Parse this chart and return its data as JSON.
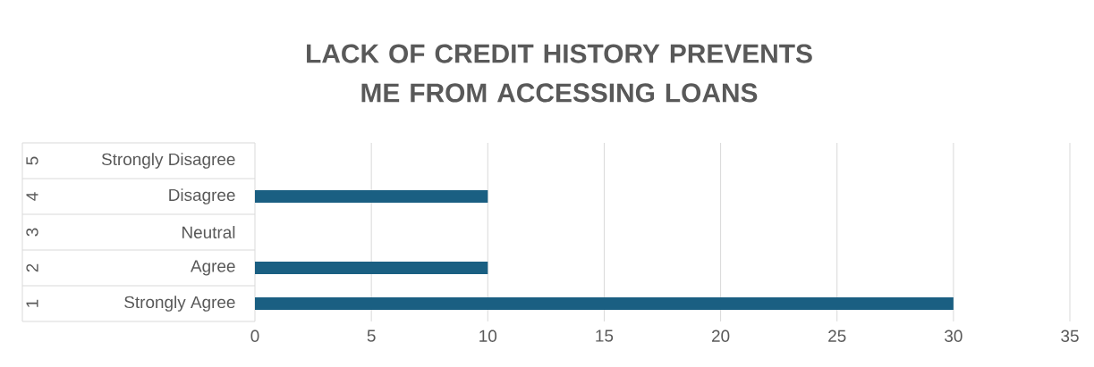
{
  "chart_data": {
    "type": "bar",
    "orientation": "horizontal",
    "title": "LACK OF CREDIT HISTORY PREVENTS ME FROM ACCESSING LOANS",
    "categories": [
      "Strongly Disagree",
      "Disagree",
      "Neutral",
      "Agree",
      "Strongly Agree"
    ],
    "values": [
      0,
      10,
      0,
      10,
      30
    ],
    "color": "#1a5f82",
    "annotations": [
      "5",
      "4",
      "3",
      "2",
      "1"
    ],
    "xlim": [
      0,
      35
    ],
    "xticks": [
      0,
      5,
      10,
      15,
      20,
      25,
      30,
      35
    ],
    "grid": "x"
  }
}
